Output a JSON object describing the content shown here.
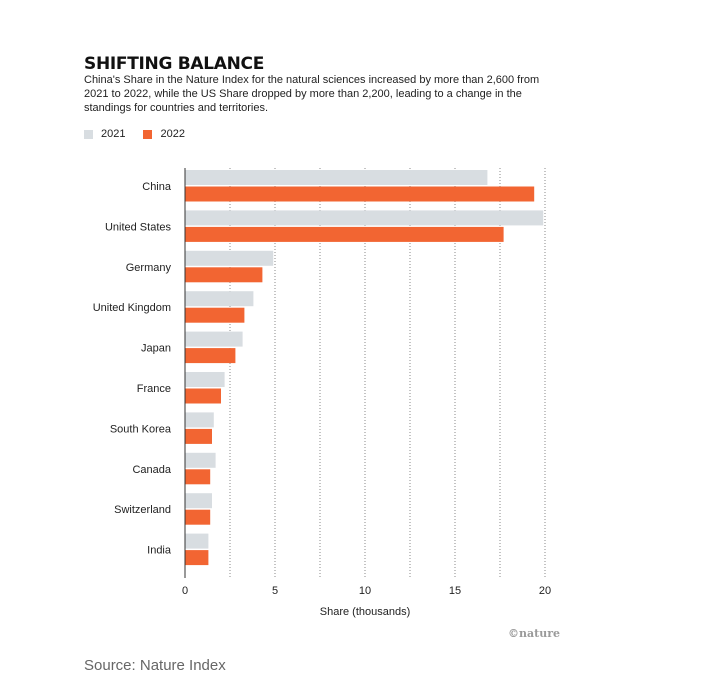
{
  "header": {
    "title": "SHIFTING BALANCE",
    "subtitle": "China's Share in the Nature Index for the natural sciences increased by more than 2,600 from 2021 to 2022, while the US Share dropped by more than 2,200, leading to a change in the standings for countries and territories."
  },
  "legend": [
    {
      "label": "2021",
      "color": "#d8dde1"
    },
    {
      "label": "2022",
      "color": "#f26532"
    }
  ],
  "chart_data": {
    "type": "bar",
    "orientation": "horizontal",
    "categories": [
      "China",
      "United States",
      "Germany",
      "United Kingdom",
      "Japan",
      "France",
      "South Korea",
      "Canada",
      "Switzerland",
      "India"
    ],
    "series": [
      {
        "name": "2021",
        "color": "#d8dde1",
        "values": [
          16.8,
          19.9,
          4.9,
          3.8,
          3.2,
          2.2,
          1.6,
          1.7,
          1.5,
          1.3
        ]
      },
      {
        "name": "2022",
        "color": "#f26532",
        "values": [
          19.4,
          17.7,
          4.3,
          3.3,
          2.8,
          2.0,
          1.5,
          1.4,
          1.4,
          1.3
        ]
      }
    ],
    "xlabel": "Share (thousands)",
    "xlim": [
      0,
      20
    ],
    "xticks": [
      0,
      5,
      10,
      15,
      20
    ],
    "grid": "vertical dotted"
  },
  "credit": "©nature",
  "source": "Source: Nature Index"
}
